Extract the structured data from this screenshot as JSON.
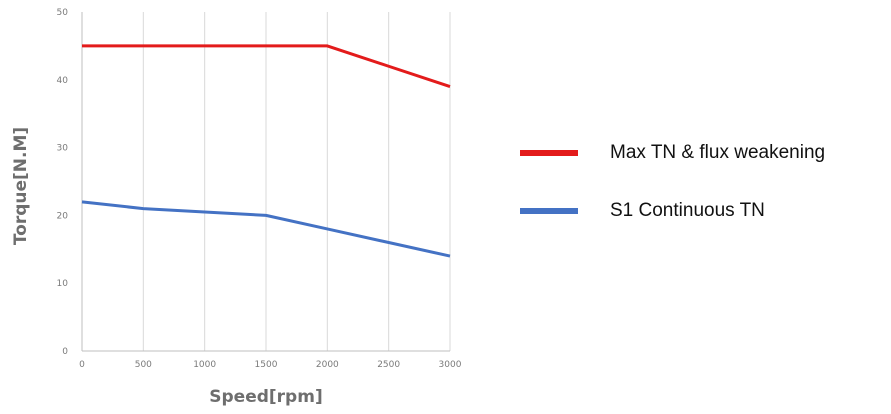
{
  "chart_data": {
    "type": "line",
    "title": "",
    "xlabel": "Speed[rpm]",
    "ylabel": "Torque[N.M]",
    "xlim": [
      0,
      3000
    ],
    "ylim": [
      0,
      50
    ],
    "xticks": [
      0,
      500,
      1000,
      1500,
      2000,
      2500,
      3000
    ],
    "yticks": [
      0,
      10,
      20,
      30,
      40,
      50
    ],
    "xtick_labels": [
      "0",
      "500",
      "1000",
      "1500",
      "2000",
      "2500",
      "3000"
    ],
    "ytick_labels": [
      "0",
      "10",
      "20",
      "30",
      "40",
      "50"
    ],
    "grid": true,
    "legend_position": "right",
    "series": [
      {
        "name": "Max TN & flux weakening",
        "color": "#e31b1b",
        "x": [
          0,
          500,
          1000,
          1500,
          2000,
          2500,
          3000
        ],
        "y": [
          45,
          45,
          45,
          45,
          45,
          42,
          39
        ]
      },
      {
        "name": "S1 Continuous TN",
        "color": "#4472c4",
        "x": [
          0,
          500,
          1000,
          1500,
          2000,
          2500,
          3000
        ],
        "y": [
          22,
          21,
          20.5,
          20,
          18,
          16,
          14
        ]
      }
    ]
  }
}
